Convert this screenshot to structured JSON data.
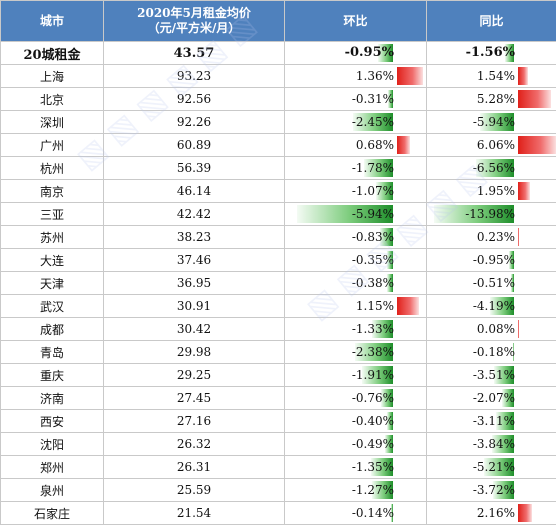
{
  "table": {
    "headers": {
      "city": "城市",
      "price_line1": "2020年5月租金均价",
      "price_line2": "（元/平方米/月）",
      "mom": "环比",
      "yoy": "同比"
    },
    "summary": {
      "city": "20城租金",
      "price": "43.57",
      "mom": "-0.95%",
      "yoy": "-1.56%"
    },
    "rows": [
      {
        "city": "上海",
        "price": "93.23",
        "mom": "1.36%",
        "yoy": "1.54%"
      },
      {
        "city": "北京",
        "price": "92.56",
        "mom": "-0.31%",
        "yoy": "5.28%"
      },
      {
        "city": "深圳",
        "price": "92.26",
        "mom": "-2.45%",
        "yoy": "-5.94%"
      },
      {
        "city": "广州",
        "price": "60.89",
        "mom": "0.68%",
        "yoy": "6.06%"
      },
      {
        "city": "杭州",
        "price": "56.39",
        "mom": "-1.78%",
        "yoy": "-6.56%"
      },
      {
        "city": "南京",
        "price": "46.14",
        "mom": "-1.07%",
        "yoy": "1.95%"
      },
      {
        "city": "三亚",
        "price": "42.42",
        "mom": "-5.94%",
        "yoy": "-13.98%"
      },
      {
        "city": "苏州",
        "price": "38.23",
        "mom": "-0.83%",
        "yoy": "0.23%"
      },
      {
        "city": "大连",
        "price": "37.46",
        "mom": "-0.35%",
        "yoy": "-0.95%"
      },
      {
        "city": "天津",
        "price": "36.95",
        "mom": "-0.38%",
        "yoy": "-0.51%"
      },
      {
        "city": "武汉",
        "price": "30.91",
        "mom": "1.15%",
        "yoy": "-4.19%"
      },
      {
        "city": "成都",
        "price": "30.42",
        "mom": "-1.33%",
        "yoy": "0.08%"
      },
      {
        "city": "青岛",
        "price": "29.98",
        "mom": "-2.38%",
        "yoy": "-0.18%"
      },
      {
        "city": "重庆",
        "price": "29.25",
        "mom": "-1.91%",
        "yoy": "-3.51%"
      },
      {
        "city": "济南",
        "price": "27.45",
        "mom": "-0.76%",
        "yoy": "-2.07%"
      },
      {
        "city": "西安",
        "price": "27.16",
        "mom": "-0.40%",
        "yoy": "-3.11%"
      },
      {
        "city": "沈阳",
        "price": "26.32",
        "mom": "-0.49%",
        "yoy": "-3.84%"
      },
      {
        "city": "郑州",
        "price": "26.31",
        "mom": "-1.35%",
        "yoy": "-5.21%"
      },
      {
        "city": "泉州",
        "price": "25.59",
        "mom": "-1.27%",
        "yoy": "-3.72%"
      },
      {
        "city": "石家庄",
        "price": "21.54",
        "mom": "-0.14%",
        "yoy": "2.16%"
      }
    ]
  },
  "colors": {
    "header_bg": "#4f81bd",
    "negative_bar": "#1e8e2a",
    "positive_bar": "#e0201a"
  }
}
